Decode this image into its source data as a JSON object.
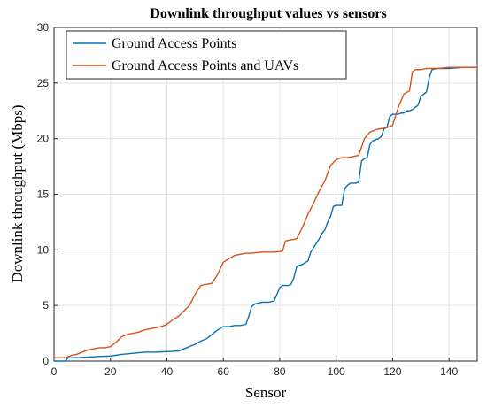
{
  "chart_data": {
    "type": "line",
    "title": "Downlink throughput values vs sensors",
    "xlabel": "Sensor",
    "ylabel": "Downlink throughput (Mbps)",
    "xlim": [
      0,
      150
    ],
    "ylim": [
      0,
      30
    ],
    "x_ticks": [
      "0",
      "20",
      "40",
      "60",
      "80",
      "100",
      "120",
      "140"
    ],
    "y_ticks": [
      "0",
      "5",
      "10",
      "15",
      "20",
      "25",
      "30"
    ],
    "grid": true,
    "legend_position": "top-left",
    "series": [
      {
        "name": "Ground Access Points",
        "color": "#0072BD",
        "x": [
          0,
          4,
          5,
          8,
          15,
          20,
          24,
          26,
          28,
          30,
          32,
          36,
          40,
          44,
          46,
          48,
          50,
          52,
          54,
          56,
          58,
          60,
          62,
          64,
          66,
          68,
          69,
          70,
          71,
          72,
          74,
          76,
          78,
          80,
          81,
          83,
          84,
          85,
          86,
          88,
          90,
          91,
          92,
          93,
          94,
          95,
          96,
          97,
          98,
          99,
          100,
          101,
          102,
          103,
          104,
          105,
          106,
          107,
          108,
          109,
          110,
          111,
          112,
          113,
          114,
          115,
          116,
          117,
          118,
          119,
          120,
          121,
          122,
          123,
          124,
          125,
          126,
          127,
          128,
          129,
          130,
          131,
          132,
          133,
          134,
          136,
          140,
          145,
          150
        ],
        "values": [
          0,
          0,
          0.3,
          0.3,
          0.4,
          0.45,
          0.6,
          0.65,
          0.7,
          0.75,
          0.8,
          0.8,
          0.85,
          0.9,
          1.1,
          1.3,
          1.5,
          1.8,
          2.0,
          2.4,
          2.8,
          3.1,
          3.1,
          3.2,
          3.2,
          3.3,
          4.0,
          4.9,
          5.1,
          5.2,
          5.3,
          5.3,
          5.4,
          6.6,
          6.8,
          6.8,
          6.9,
          7.5,
          8.5,
          8.7,
          9.0,
          9.8,
          10.2,
          10.6,
          11.0,
          11.5,
          11.8,
          12.5,
          13.0,
          13.9,
          14.0,
          14.0,
          14.0,
          15.5,
          15.8,
          16.0,
          16.0,
          16.0,
          16.1,
          18.0,
          18.2,
          18.3,
          19.5,
          19.8,
          19.9,
          20.0,
          20.2,
          20.9,
          21.0,
          22.0,
          22.2,
          22.2,
          22.2,
          22.3,
          22.3,
          22.5,
          22.5,
          22.6,
          22.8,
          23.0,
          23.8,
          24.0,
          24.2,
          25.5,
          26.2,
          26.3,
          26.3,
          26.4,
          26.4
        ]
      },
      {
        "name": "Ground Access Points and UAVs",
        "color": "#D95319",
        "x": [
          0,
          2,
          4,
          6,
          8,
          10,
          12,
          14,
          16,
          18,
          20,
          22,
          24,
          26,
          28,
          30,
          32,
          34,
          36,
          38,
          40,
          42,
          44,
          46,
          48,
          50,
          52,
          54,
          56,
          58,
          60,
          62,
          64,
          66,
          68,
          70,
          72,
          74,
          76,
          78,
          80,
          81,
          82,
          84,
          86,
          88,
          90,
          92,
          94,
          96,
          98,
          100,
          102,
          104,
          106,
          108,
          110,
          112,
          114,
          116,
          118,
          120,
          122,
          124,
          126,
          127,
          128,
          130,
          132,
          134,
          136,
          140,
          145,
          150
        ],
        "values": [
          0.3,
          0.3,
          0.3,
          0.5,
          0.6,
          0.8,
          1.0,
          1.1,
          1.2,
          1.2,
          1.3,
          1.7,
          2.2,
          2.4,
          2.5,
          2.6,
          2.8,
          2.9,
          3.0,
          3.1,
          3.3,
          3.7,
          4.0,
          4.5,
          5.0,
          6.0,
          6.8,
          6.9,
          7.0,
          7.8,
          8.9,
          9.2,
          9.5,
          9.6,
          9.7,
          9.7,
          9.75,
          9.8,
          9.8,
          9.8,
          9.85,
          9.9,
          10.8,
          10.9,
          11.0,
          12.0,
          13.2,
          14.2,
          15.3,
          16.2,
          17.6,
          18.1,
          18.3,
          18.3,
          18.4,
          18.5,
          20.0,
          20.6,
          20.8,
          20.9,
          21.0,
          21.2,
          22.8,
          24.0,
          24.3,
          26.0,
          26.2,
          26.2,
          26.3,
          26.3,
          26.3,
          26.4,
          26.4,
          26.4
        ]
      }
    ]
  }
}
